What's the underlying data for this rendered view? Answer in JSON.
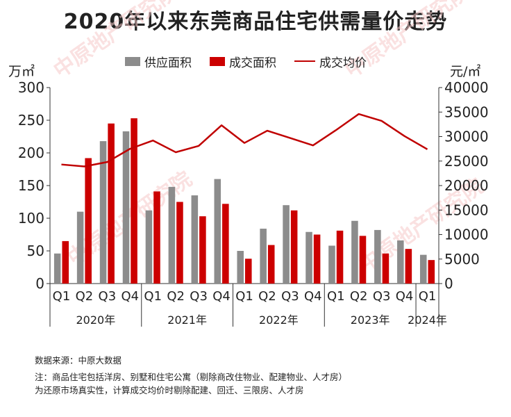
{
  "title": "2020年以来东莞商品住宅供需量价走势",
  "units": {
    "left": "万㎡",
    "right": "元/㎡"
  },
  "legend": {
    "supply": "供应面积",
    "deal": "成交面积",
    "price": "成交均价"
  },
  "colors": {
    "supply": "#8c8c8c",
    "deal": "#cc0000",
    "price": "#c00000"
  },
  "watermark": "中原地产研究院",
  "notes": {
    "source": "数据来源：中原大数据",
    "note1": "注：商品住宅包括洋房、别墅和住宅公寓（剔除商改住物业、配建物业、人才房）",
    "note2": "为还原市场真实性，计算成交均价时剔除配建、回迁、三限房、人才房"
  },
  "chart_data": {
    "type": "bar",
    "title": "2020年以来东莞商品住宅供需量价走势",
    "categories": [
      "Q1",
      "Q2",
      "Q3",
      "Q4",
      "Q1",
      "Q2",
      "Q3",
      "Q4",
      "Q1",
      "Q2",
      "Q3",
      "Q4",
      "Q1",
      "Q2",
      "Q3",
      "Q4",
      "Q1"
    ],
    "groups": [
      {
        "label": "2020年",
        "count": 4
      },
      {
        "label": "2021年",
        "count": 4
      },
      {
        "label": "2022年",
        "count": 4
      },
      {
        "label": "2023年",
        "count": 4
      },
      {
        "label": "2024年",
        "count": 1
      }
    ],
    "series": [
      {
        "name": "供应面积",
        "type": "bar",
        "axis": "left",
        "values": [
          46,
          110,
          218,
          233,
          112,
          148,
          135,
          160,
          50,
          84,
          120,
          79,
          58,
          96,
          82,
          66,
          44
        ]
      },
      {
        "name": "成交面积",
        "type": "bar",
        "axis": "left",
        "values": [
          65,
          192,
          245,
          253,
          141,
          125,
          103,
          122,
          38,
          59,
          112,
          75,
          81,
          73,
          46,
          53,
          36
        ]
      },
      {
        "name": "成交均价",
        "type": "line",
        "axis": "right",
        "values": [
          24300,
          23900,
          24800,
          27500,
          29200,
          26800,
          28100,
          32300,
          28700,
          31200,
          29700,
          28200,
          31300,
          34600,
          33200,
          30100,
          27400
        ]
      }
    ],
    "ylim_left": [
      0,
      300
    ],
    "yticks_left": [
      0,
      50,
      100,
      150,
      200,
      250,
      300
    ],
    "ylim_right": [
      0,
      40000
    ],
    "yticks_right": [
      0,
      5000,
      10000,
      15000,
      20000,
      25000,
      30000,
      35000,
      40000
    ],
    "grid": false,
    "legend_position": "top"
  }
}
